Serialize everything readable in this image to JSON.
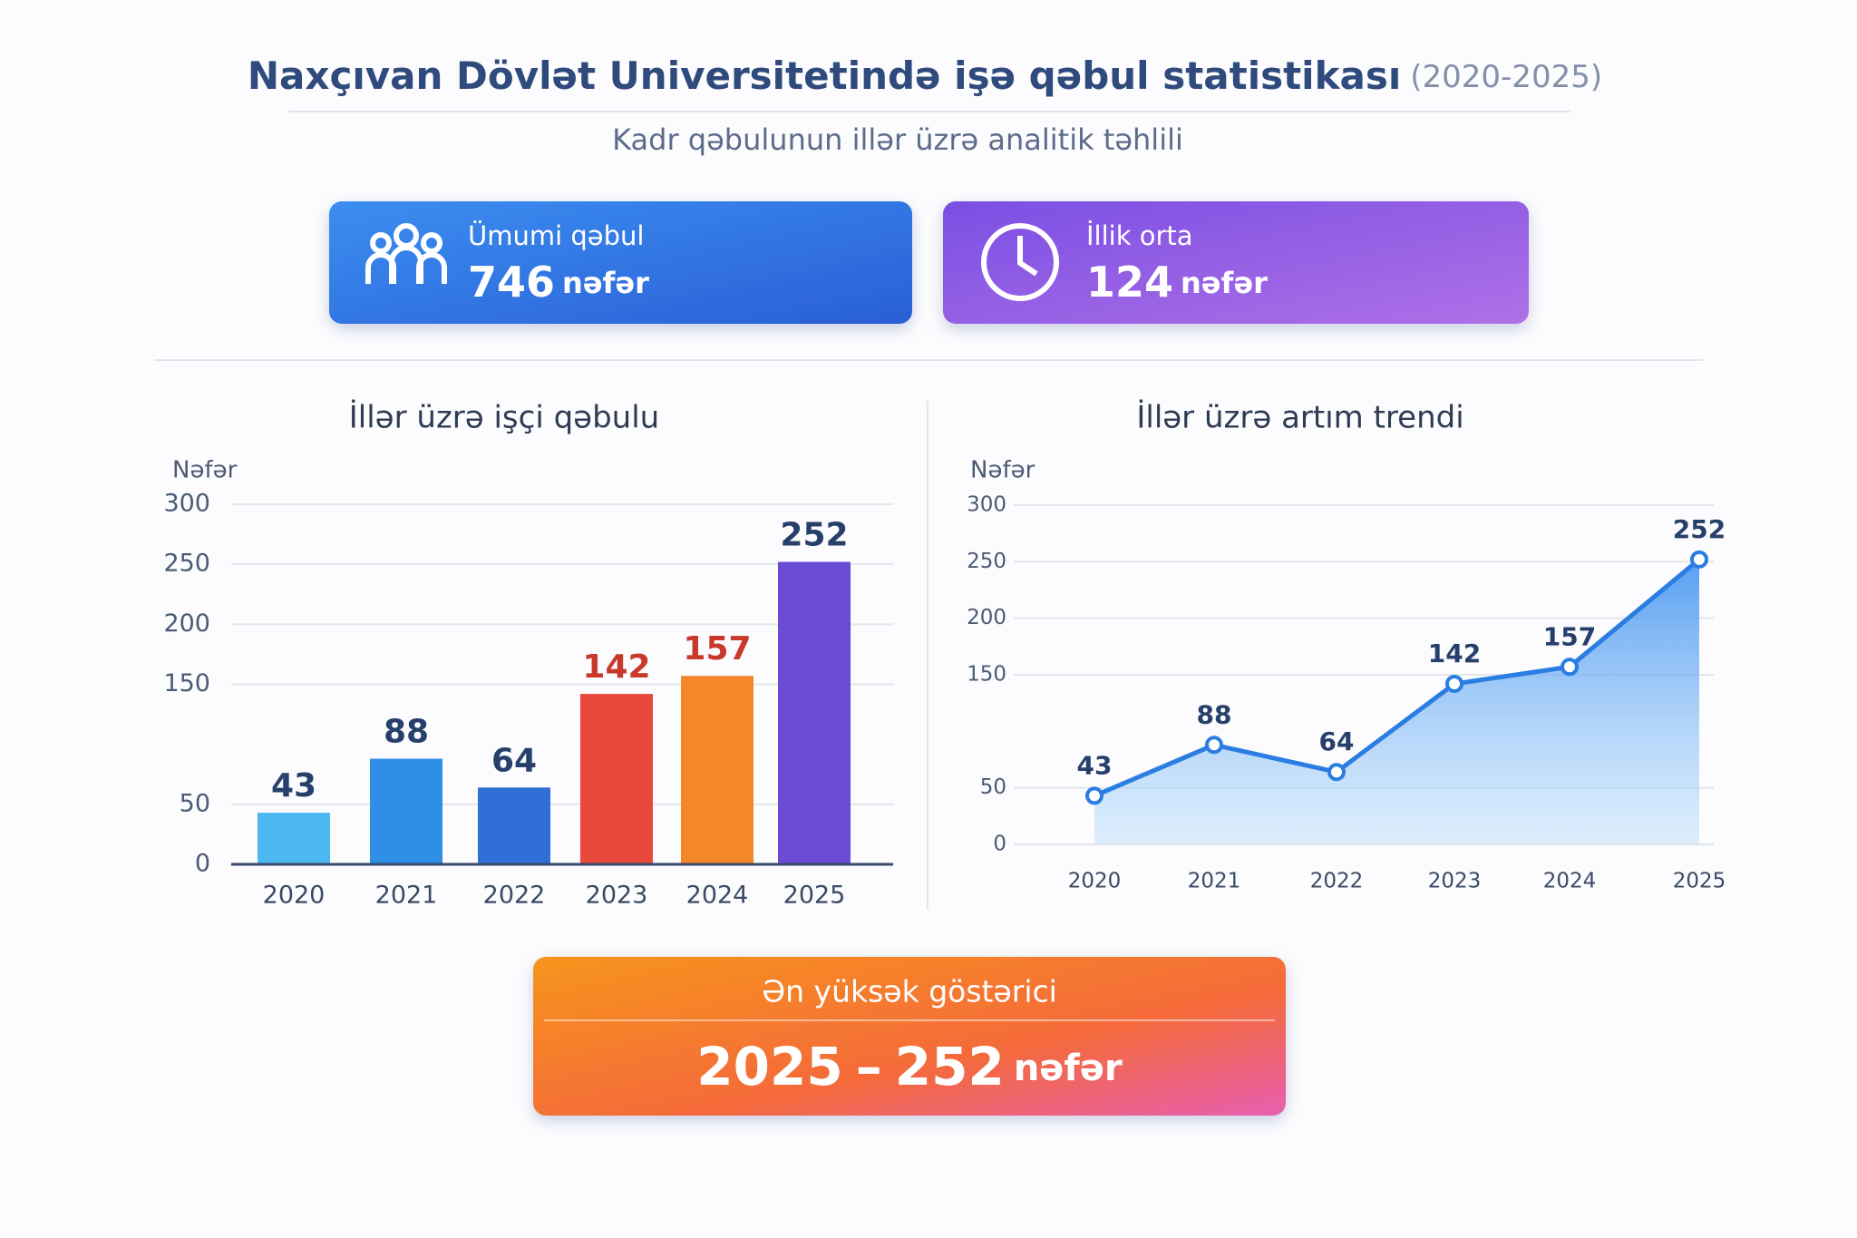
{
  "header": {
    "title": "Naxçıvan Dövlət Universitetində işə qəbul statistikası",
    "title_suffix": "(2020-2025)",
    "subtitle": "Kadr qəbulunun illər üzrə analitik təhlili"
  },
  "cards": [
    {
      "label": "Ümumi qəbul",
      "value": 746,
      "unit": "nəfər"
    },
    {
      "label": "İllik orta",
      "value": 124,
      "unit": "nəfər"
    }
  ],
  "chart_data": [
    {
      "type": "bar",
      "title": "İllər üzrə işçi qəbulu",
      "y_label": "Nəfər",
      "categories": [
        "2020",
        "2021",
        "2022",
        "2023",
        "2024",
        "2025"
      ],
      "values": [
        43,
        88,
        64,
        142,
        157,
        252
      ],
      "colors": [
        "#4cb8f2",
        "#2f8ee6",
        "#2f6fd6",
        "#e8493a",
        "#f5862a",
        "#6a4bd3"
      ],
      "label_colors": [
        "#27406b",
        "#27406b",
        "#27406b",
        "#c8392b",
        "#c8392b",
        "#27406b"
      ],
      "ylim": [
        0,
        300
      ],
      "yticks": [
        0,
        50,
        150,
        200,
        250,
        300
      ],
      "grid": true
    },
    {
      "type": "line",
      "title": "İllər üzrə artım trendi",
      "y_label": "Nəfər",
      "categories": [
        "2020",
        "2021",
        "2022",
        "2023",
        "2024",
        "2025"
      ],
      "values": [
        43,
        88,
        64,
        142,
        157,
        252
      ],
      "color": "#2a7de1",
      "ylim": [
        0,
        300
      ],
      "yticks": [
        0,
        50,
        150,
        200,
        250,
        300
      ],
      "grid": true
    }
  ],
  "highlight": {
    "label": "Ən yüksək göstərici",
    "year": "2025",
    "separator": "–",
    "value": 252,
    "unit": "nəfər"
  }
}
